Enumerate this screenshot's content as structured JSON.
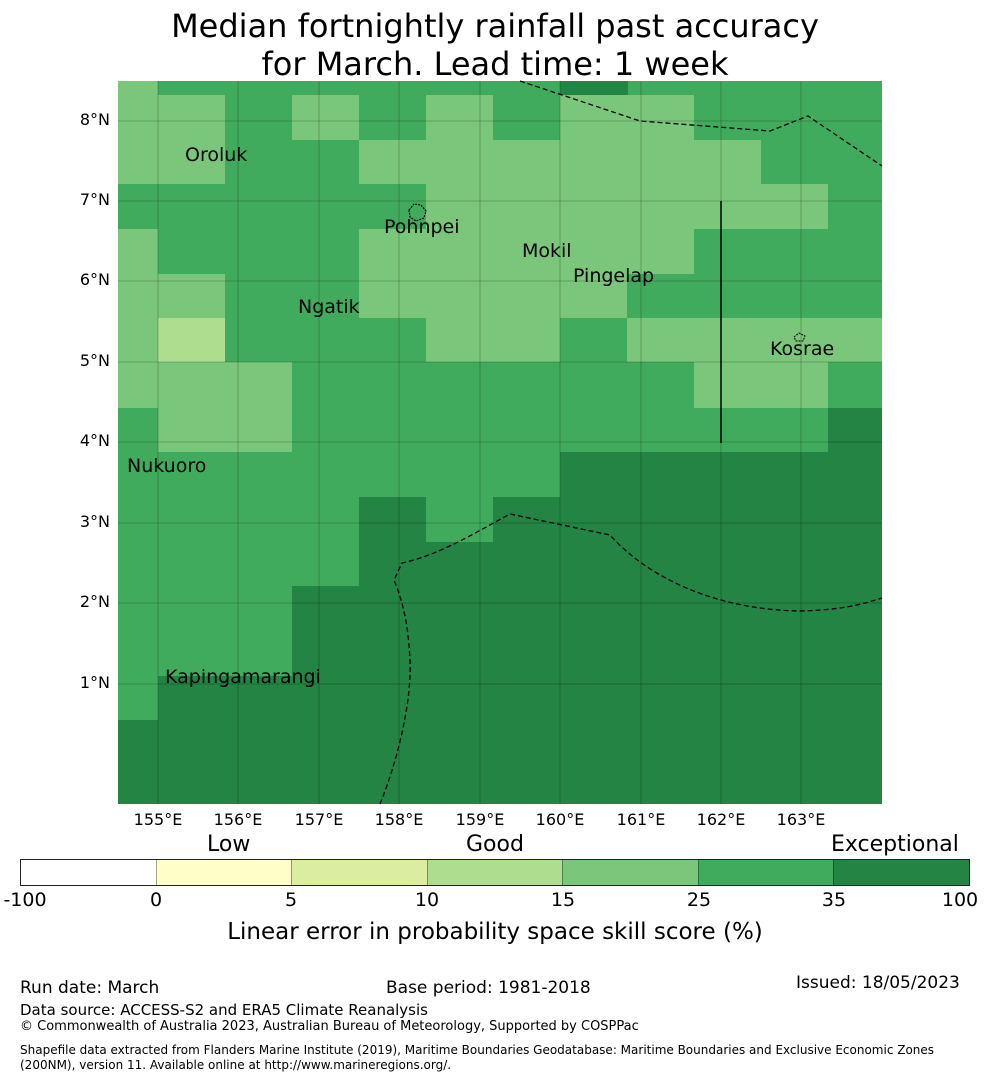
{
  "title": {
    "line1": "Median fortnightly rainfall past accuracy",
    "line2": "for March. Lead time: 1 week"
  },
  "map": {
    "lat_ticks": [
      "8°N",
      "7°N",
      "6°N",
      "5°N",
      "4°N",
      "3°N",
      "2°N",
      "1°N"
    ],
    "lon_ticks": [
      "155°E",
      "156°E",
      "157°E",
      "158°E",
      "159°E",
      "160°E",
      "161°E",
      "162°E",
      "163°E"
    ],
    "islands": [
      "Oroluk",
      "Pohnpei",
      "Mokil",
      "Pingelap",
      "Ngatik",
      "Kosrae",
      "Nukuoro",
      "Kapingamarangi"
    ]
  },
  "colorbar": {
    "categories": [
      "Low",
      "Good",
      "Exceptional"
    ],
    "ticks": [
      "-100",
      "0",
      "5",
      "10",
      "15",
      "25",
      "35",
      "100"
    ],
    "colors": [
      "#ffffff",
      "#fffdc8",
      "#daeda0",
      "#aedd8e",
      "#7ac67a",
      "#41ab5d",
      "#238443"
    ],
    "label": "Linear error in probability space skill score (%)"
  },
  "footer": {
    "run_date": "Run date: March",
    "base_period": "Base period: 1981-2018",
    "issued": "Issued: 18/05/2023",
    "data_source": "Data source: ACCESS-S2 and ERA5 Climate Reanalysis",
    "copyright": "© Commonwealth of Australia 2023, Australian Bureau of Meteorology, Supported by COSPPac",
    "shapefile_line1": "Shapefile data extracted from Flanders Marine Institute (2019), Maritime Boundaries Geodatabase: Maritime Boundaries and Exclusive Economic Zones",
    "shapefile_line2": "(200NM), version 11. Available online at http://www.marineregions.org/."
  }
}
